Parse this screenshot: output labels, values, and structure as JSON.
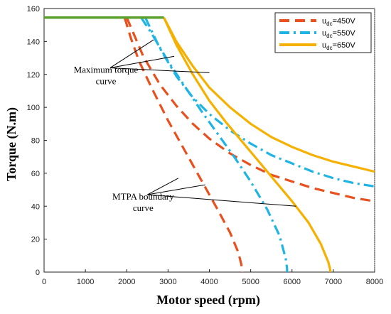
{
  "chart_data": {
    "type": "line",
    "xlabel": "Motor speed (rpm)",
    "ylabel": "Torque (N.m)",
    "xlim": [
      0,
      8000
    ],
    "ylim": [
      0,
      160
    ],
    "xticks": [
      "0",
      "1000",
      "2000",
      "3000",
      "4000",
      "5000",
      "6000",
      "7000",
      "8000"
    ],
    "yticks": [
      "0",
      "20",
      "40",
      "60",
      "80",
      "100",
      "120",
      "140",
      "160"
    ],
    "grid": false,
    "legend_position": "top-right",
    "common_segment": {
      "color": "#5aa02c",
      "x": [
        0,
        2900
      ],
      "y": [
        154.5,
        154.5
      ]
    },
    "series": [
      {
        "legend_main": "u",
        "legend_sub": "dc",
        "legend_value": "=450V",
        "color": "#e8501e",
        "dash": "dash",
        "maximum_torque": {
          "x": [
            2000,
            2400,
            2800,
            3200,
            3600,
            4000,
            4500,
            5000,
            5500,
            6000,
            6500,
            7000,
            7500,
            8000
          ],
          "y": [
            154.5,
            131,
            114,
            101,
            90,
            81,
            72,
            65,
            59,
            55,
            51,
            48,
            45,
            43
          ]
        },
        "mtpa_boundary": {
          "x": [
            1950,
            2100,
            2300,
            2600,
            3000,
            3400,
            3800,
            4200,
            4500,
            4700,
            4770,
            4800,
            4800
          ],
          "y": [
            154.5,
            142,
            128,
            112,
            92,
            74,
            56,
            38,
            24,
            12,
            5,
            1,
            0
          ]
        }
      },
      {
        "legend_main": "u",
        "legend_sub": "dc",
        "legend_value": "=550V",
        "color": "#1fb4e3",
        "dash": "dashdot",
        "maximum_torque": {
          "x": [
            2450,
            2800,
            3200,
            3600,
            4000,
            4500,
            5000,
            5500,
            6000,
            6500,
            7000,
            7500,
            8000
          ],
          "y": [
            154.5,
            136,
            119,
            106,
            96,
            86,
            78,
            71,
            66,
            61,
            57,
            54,
            52
          ]
        },
        "mtpa_boundary": {
          "x": [
            2350,
            2600,
            3000,
            3400,
            3800,
            4200,
            4600,
            5000,
            5400,
            5700,
            5850,
            5880,
            5880
          ],
          "y": [
            154.5,
            145,
            128,
            113,
            98,
            84,
            70,
            55,
            38,
            22,
            8,
            2,
            0
          ]
        }
      },
      {
        "legend_main": "u",
        "legend_sub": "dc",
        "legend_value": "=650V",
        "color": "#f5b000",
        "dash": "solid",
        "maximum_torque": {
          "x": [
            2900,
            3200,
            3600,
            4000,
            4500,
            5000,
            5500,
            6000,
            6500,
            7000,
            7500,
            8000
          ],
          "y": [
            154.5,
            140,
            125,
            112,
            100,
            90,
            82,
            76,
            71,
            67,
            64,
            61
          ]
        },
        "mtpa_boundary": {
          "x": [
            2900,
            3200,
            3600,
            4000,
            4400,
            4800,
            5200,
            5600,
            6000,
            6400,
            6700,
            6880,
            6920,
            6930
          ],
          "y": [
            154.5,
            138,
            120,
            104,
            91,
            79,
            67,
            55,
            43,
            30,
            17,
            6,
            2,
            0
          ]
        }
      }
    ],
    "annotations": [
      {
        "lines": [
          "Maximum torque",
          "curve"
        ],
        "anchor": [
          1600,
          124
        ],
        "targets": [
          [
            2650,
            141
          ],
          [
            3150,
            131
          ],
          [
            4000,
            121
          ]
        ]
      },
      {
        "lines": [
          "MTPA boundary",
          "curve"
        ],
        "anchor": [
          2500,
          47
        ],
        "targets": [
          [
            3250,
            57
          ],
          [
            3900,
            53
          ],
          [
            6100,
            40
          ]
        ]
      }
    ]
  }
}
